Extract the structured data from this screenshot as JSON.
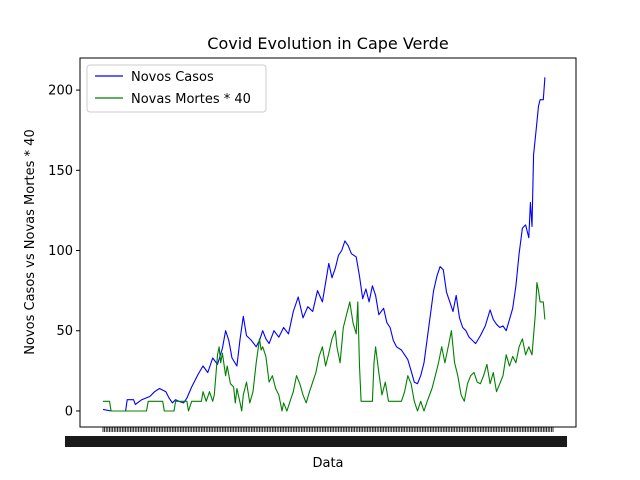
{
  "chart_data": {
    "type": "line",
    "title": "Covid Evolution in Cape Verde",
    "xlabel": "Data",
    "ylabel": "Novos Casos vs Novas Mortes * 40",
    "ylim": [
      -10,
      220
    ],
    "yticks": [
      0,
      50,
      100,
      150,
      200
    ],
    "grid": false,
    "legend_position": "top-left",
    "x_range": [
      1,
      280
    ],
    "x_tick_count": 280,
    "series": [
      {
        "name": "Novos Casos",
        "color": "#0000ff",
        "points": [
          [
            1,
            1
          ],
          [
            6,
            0
          ],
          [
            12,
            0
          ],
          [
            15,
            0
          ],
          [
            16,
            7
          ],
          [
            20,
            7
          ],
          [
            21,
            4
          ],
          [
            25,
            7
          ],
          [
            30,
            9
          ],
          [
            33,
            12
          ],
          [
            36,
            14
          ],
          [
            40,
            12
          ],
          [
            42,
            8
          ],
          [
            44,
            5
          ],
          [
            46,
            7
          ],
          [
            48,
            6
          ],
          [
            51,
            5
          ],
          [
            53,
            8
          ],
          [
            56,
            15
          ],
          [
            60,
            23
          ],
          [
            63,
            28
          ],
          [
            66,
            24
          ],
          [
            69,
            33
          ],
          [
            72,
            29
          ],
          [
            75,
            39
          ],
          [
            77,
            50
          ],
          [
            79,
            44
          ],
          [
            81,
            33
          ],
          [
            84,
            28
          ],
          [
            86,
            45
          ],
          [
            88,
            59
          ],
          [
            90,
            47
          ],
          [
            93,
            44
          ],
          [
            96,
            40
          ],
          [
            98,
            44
          ],
          [
            100,
            50
          ],
          [
            102,
            45
          ],
          [
            104,
            42
          ],
          [
            107,
            50
          ],
          [
            110,
            46
          ],
          [
            113,
            52
          ],
          [
            116,
            48
          ],
          [
            119,
            62
          ],
          [
            122,
            71
          ],
          [
            125,
            58
          ],
          [
            128,
            65
          ],
          [
            131,
            62
          ],
          [
            134,
            75
          ],
          [
            137,
            68
          ],
          [
            139,
            80
          ],
          [
            141,
            92
          ],
          [
            143,
            83
          ],
          [
            145,
            89
          ],
          [
            147,
            97
          ],
          [
            149,
            100
          ],
          [
            151,
            106
          ],
          [
            153,
            103
          ],
          [
            155,
            98
          ],
          [
            158,
            96
          ],
          [
            160,
            84
          ],
          [
            162,
            70
          ],
          [
            164,
            76
          ],
          [
            166,
            68
          ],
          [
            168,
            78
          ],
          [
            170,
            72
          ],
          [
            172,
            60
          ],
          [
            175,
            64
          ],
          [
            177,
            55
          ],
          [
            179,
            52
          ],
          [
            181,
            44
          ],
          [
            183,
            40
          ],
          [
            186,
            38
          ],
          [
            188,
            35
          ],
          [
            190,
            32
          ],
          [
            192,
            25
          ],
          [
            194,
            18
          ],
          [
            196,
            17
          ],
          [
            198,
            22
          ],
          [
            200,
            30
          ],
          [
            202,
            45
          ],
          [
            204,
            60
          ],
          [
            206,
            75
          ],
          [
            208,
            84
          ],
          [
            210,
            90
          ],
          [
            212,
            88
          ],
          [
            214,
            74
          ],
          [
            216,
            68
          ],
          [
            218,
            62
          ],
          [
            220,
            72
          ],
          [
            222,
            58
          ],
          [
            224,
            52
          ],
          [
            226,
            50
          ],
          [
            228,
            46
          ],
          [
            230,
            44
          ],
          [
            232,
            42
          ],
          [
            235,
            47
          ],
          [
            238,
            53
          ],
          [
            241,
            63
          ],
          [
            243,
            57
          ],
          [
            245,
            54
          ],
          [
            247,
            52
          ],
          [
            249,
            53
          ],
          [
            251,
            50
          ],
          [
            253,
            57
          ],
          [
            255,
            64
          ],
          [
            257,
            78
          ],
          [
            259,
            98
          ],
          [
            261,
            114
          ],
          [
            263,
            116
          ],
          [
            265,
            108
          ],
          [
            266,
            130
          ],
          [
            267,
            115
          ],
          [
            268,
            160
          ],
          [
            269,
            170
          ],
          [
            270,
            180
          ],
          [
            271,
            190
          ],
          [
            272,
            194
          ],
          [
            274,
            194
          ],
          [
            275,
            208
          ]
        ]
      },
      {
        "name": "Novas Mortes * 40",
        "color": "#008000",
        "points": [
          [
            1,
            6
          ],
          [
            5,
            6
          ],
          [
            6,
            0
          ],
          [
            28,
            0
          ],
          [
            29,
            6
          ],
          [
            38,
            6
          ],
          [
            39,
            0
          ],
          [
            45,
            0
          ],
          [
            46,
            6
          ],
          [
            53,
            6
          ],
          [
            54,
            0
          ],
          [
            56,
            6
          ],
          [
            62,
            6
          ],
          [
            63,
            12
          ],
          [
            65,
            6
          ],
          [
            67,
            12
          ],
          [
            69,
            6
          ],
          [
            70,
            10
          ],
          [
            72,
            35
          ],
          [
            73,
            40
          ],
          [
            74,
            30
          ],
          [
            75,
            36
          ],
          [
            77,
            22
          ],
          [
            78,
            28
          ],
          [
            80,
            17
          ],
          [
            82,
            15
          ],
          [
            83,
            5
          ],
          [
            84,
            14
          ],
          [
            86,
            5
          ],
          [
            87,
            0
          ],
          [
            88,
            10
          ],
          [
            90,
            18
          ],
          [
            92,
            5
          ],
          [
            94,
            12
          ],
          [
            96,
            30
          ],
          [
            98,
            45
          ],
          [
            99,
            38
          ],
          [
            100,
            40
          ],
          [
            102,
            34
          ],
          [
            104,
            18
          ],
          [
            106,
            22
          ],
          [
            108,
            14
          ],
          [
            110,
            10
          ],
          [
            112,
            0
          ],
          [
            113,
            5
          ],
          [
            115,
            0
          ],
          [
            117,
            6
          ],
          [
            119,
            12
          ],
          [
            121,
            22
          ],
          [
            123,
            17
          ],
          [
            125,
            10
          ],
          [
            127,
            5
          ],
          [
            129,
            12
          ],
          [
            131,
            18
          ],
          [
            133,
            24
          ],
          [
            135,
            34
          ],
          [
            137,
            40
          ],
          [
            139,
            28
          ],
          [
            141,
            36
          ],
          [
            143,
            45
          ],
          [
            145,
            50
          ],
          [
            146,
            40
          ],
          [
            148,
            30
          ],
          [
            150,
            52
          ],
          [
            152,
            60
          ],
          [
            154,
            68
          ],
          [
            156,
            55
          ],
          [
            158,
            48
          ],
          [
            159,
            68
          ],
          [
            160,
            28
          ],
          [
            161,
            6
          ],
          [
            168,
            6
          ],
          [
            169,
            30
          ],
          [
            170,
            40
          ],
          [
            172,
            24
          ],
          [
            174,
            10
          ],
          [
            176,
            18
          ],
          [
            178,
            6
          ],
          [
            186,
            6
          ],
          [
            188,
            12
          ],
          [
            190,
            22
          ],
          [
            192,
            17
          ],
          [
            194,
            6
          ],
          [
            196,
            0
          ],
          [
            198,
            6
          ],
          [
            200,
            0
          ],
          [
            202,
            6
          ],
          [
            205,
            14
          ],
          [
            207,
            22
          ],
          [
            209,
            30
          ],
          [
            211,
            40
          ],
          [
            213,
            30
          ],
          [
            215,
            40
          ],
          [
            217,
            50
          ],
          [
            219,
            30
          ],
          [
            221,
            22
          ],
          [
            223,
            10
          ],
          [
            225,
            6
          ],
          [
            227,
            17
          ],
          [
            229,
            22
          ],
          [
            231,
            24
          ],
          [
            233,
            18
          ],
          [
            235,
            17
          ],
          [
            237,
            22
          ],
          [
            239,
            29
          ],
          [
            241,
            17
          ],
          [
            243,
            24
          ],
          [
            245,
            12
          ],
          [
            247,
            17
          ],
          [
            249,
            22
          ],
          [
            251,
            35
          ],
          [
            253,
            28
          ],
          [
            255,
            34
          ],
          [
            257,
            30
          ],
          [
            259,
            40
          ],
          [
            261,
            45
          ],
          [
            263,
            35
          ],
          [
            265,
            40
          ],
          [
            267,
            35
          ],
          [
            269,
            60
          ],
          [
            270,
            80
          ],
          [
            271,
            75
          ],
          [
            272,
            68
          ],
          [
            274,
            68
          ],
          [
            275,
            57
          ]
        ]
      }
    ]
  }
}
